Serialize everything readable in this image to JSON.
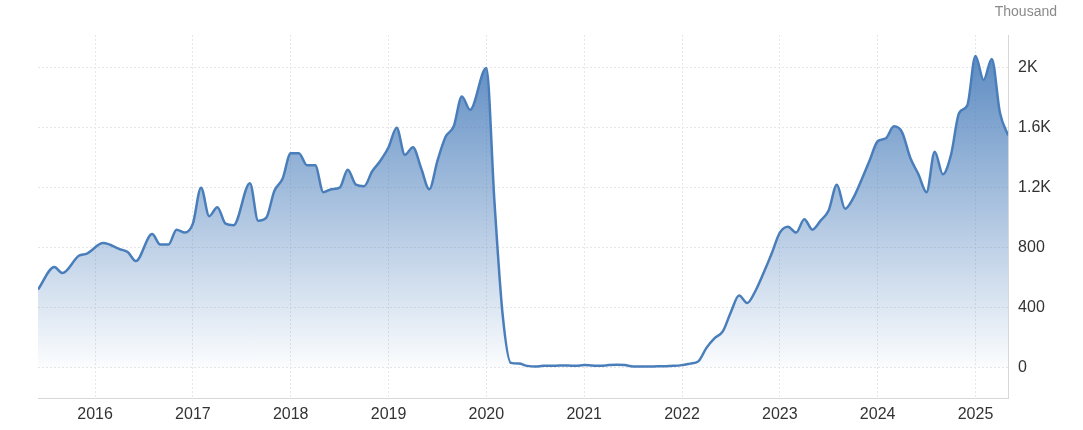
{
  "chart_data": {
    "type": "area",
    "ylabel": "Thousand",
    "x": [
      "2015-06",
      "2015-08",
      "2015-09",
      "2015-11",
      "2015-12",
      "2016-02",
      "2016-04",
      "2016-05",
      "2016-06",
      "2016-08",
      "2016-09",
      "2016-10",
      "2016-11",
      "2016-12",
      "2017-01",
      "2017-02",
      "2017-03",
      "2017-04",
      "2017-05",
      "2017-06",
      "2017-08",
      "2017-09",
      "2017-10",
      "2017-11",
      "2017-12",
      "2018-01",
      "2018-02",
      "2018-03",
      "2018-04",
      "2018-05",
      "2018-06",
      "2018-07",
      "2018-08",
      "2018-09",
      "2018-10",
      "2018-11",
      "2018-12",
      "2019-01",
      "2019-02",
      "2019-03",
      "2019-04",
      "2019-05",
      "2019-06",
      "2019-07",
      "2019-08",
      "2019-09",
      "2019-10",
      "2019-11",
      "2020-01",
      "2020-02",
      "2020-03",
      "2020-04",
      "2020-05",
      "2020-06",
      "2020-07",
      "2020-08",
      "2020-09",
      "2020-10",
      "2020-11",
      "2020-12",
      "2021-01",
      "2021-02",
      "2021-03",
      "2021-04",
      "2021-05",
      "2021-06",
      "2021-07",
      "2021-08",
      "2021-09",
      "2021-10",
      "2021-11",
      "2021-12",
      "2022-01",
      "2022-02",
      "2022-03",
      "2022-04",
      "2022-05",
      "2022-06",
      "2022-07",
      "2022-08",
      "2022-09",
      "2022-10",
      "2022-11",
      "2022-12",
      "2023-01",
      "2023-02",
      "2023-03",
      "2023-04",
      "2023-05",
      "2023-06",
      "2023-07",
      "2023-08",
      "2023-09",
      "2023-10",
      "2023-11",
      "2023-12",
      "2024-01",
      "2024-02",
      "2024-03",
      "2024-04",
      "2024-05",
      "2024-06",
      "2024-07",
      "2024-08",
      "2024-09",
      "2024-10",
      "2024-11",
      "2024-12",
      "2025-01",
      "2025-02",
      "2025-03",
      "2025-04",
      "2025-05"
    ],
    "series": [
      {
        "color": "#4a7ebb",
        "values": [
          520,
          670,
          630,
          745,
          760,
          830,
          790,
          770,
          710,
          890,
          820,
          820,
          920,
          900,
          960,
          1200,
          1010,
          1070,
          960,
          950,
          1230,
          980,
          1000,
          1180,
          1260,
          1430,
          1430,
          1350,
          1350,
          1170,
          1190,
          1200,
          1320,
          1220,
          1210,
          1310,
          1380,
          1470,
          1600,
          1420,
          1470,
          1330,
          1190,
          1380,
          1540,
          1610,
          1810,
          1720,
          2000,
          1100,
          350,
          30,
          25,
          10,
          5,
          10,
          10,
          12,
          12,
          10,
          15,
          12,
          10,
          15,
          18,
          15,
          5,
          5,
          5,
          8,
          8,
          10,
          15,
          25,
          40,
          130,
          195,
          240,
          370,
          480,
          430,
          510,
          630,
          760,
          900,
          940,
          900,
          990,
          920,
          980,
          1050,
          1220,
          1060,
          1130,
          1250,
          1380,
          1510,
          1530,
          1610,
          1570,
          1400,
          1290,
          1170,
          1440,
          1290,
          1420,
          1700,
          1750,
          2080,
          1920,
          2060,
          1700,
          1550
        ]
      }
    ],
    "xlim": [
      "2015-06",
      "2025-05"
    ],
    "xticks": [
      "2016",
      "2017",
      "2018",
      "2019",
      "2020",
      "2021",
      "2022",
      "2023",
      "2024",
      "2025"
    ],
    "ylim": [
      -210,
      2220
    ],
    "yticks": [
      {
        "value": 0,
        "label": "0"
      },
      {
        "value": 400,
        "label": "400"
      },
      {
        "value": 800,
        "label": "800"
      },
      {
        "value": 1200,
        "label": "1.2K"
      },
      {
        "value": 1600,
        "label": "1.6K"
      },
      {
        "value": 2000,
        "label": "2K"
      }
    ],
    "grid": true
  }
}
